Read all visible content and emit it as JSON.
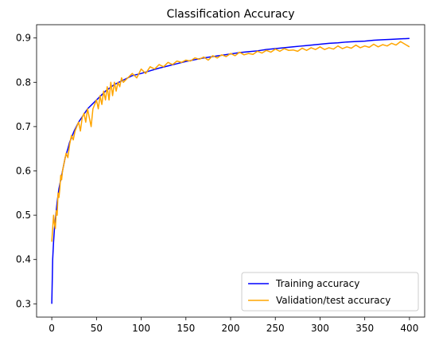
{
  "chart_data": {
    "type": "line",
    "title": "Classification Accuracy",
    "xlabel": "",
    "ylabel": "",
    "xlim": [
      -17,
      417
    ],
    "ylim": [
      0.27,
      0.93
    ],
    "x_ticks": [
      0,
      50,
      100,
      150,
      200,
      250,
      300,
      350,
      400
    ],
    "y_ticks": [
      0.3,
      0.4,
      0.5,
      0.6,
      0.7,
      0.8,
      0.9
    ],
    "grid": false,
    "legend_position": "lower right",
    "series": [
      {
        "name": "Training accuracy",
        "color": "#0000ff",
        "x": [
          0,
          1,
          2,
          3,
          4,
          5,
          6,
          8,
          10,
          12,
          15,
          18,
          20,
          25,
          30,
          35,
          40,
          45,
          50,
          60,
          70,
          80,
          90,
          100,
          110,
          120,
          130,
          140,
          150,
          160,
          170,
          180,
          190,
          200,
          210,
          220,
          230,
          240,
          250,
          260,
          270,
          280,
          290,
          300,
          310,
          320,
          330,
          340,
          350,
          360,
          370,
          380,
          390,
          400
        ],
        "y": [
          0.3,
          0.4,
          0.44,
          0.47,
          0.49,
          0.51,
          0.53,
          0.56,
          0.58,
          0.6,
          0.63,
          0.65,
          0.665,
          0.69,
          0.71,
          0.725,
          0.74,
          0.75,
          0.76,
          0.78,
          0.795,
          0.805,
          0.815,
          0.82,
          0.826,
          0.832,
          0.837,
          0.842,
          0.847,
          0.851,
          0.855,
          0.858,
          0.861,
          0.864,
          0.867,
          0.869,
          0.871,
          0.874,
          0.876,
          0.878,
          0.88,
          0.882,
          0.884,
          0.886,
          0.888,
          0.889,
          0.891,
          0.892,
          0.893,
          0.895,
          0.896,
          0.897,
          0.898,
          0.899
        ]
      },
      {
        "name": "Validation/test accuracy",
        "color": "#ffa500",
        "x": [
          0,
          1,
          2,
          3,
          4,
          5,
          6,
          7,
          8,
          9,
          10,
          11,
          12,
          14,
          16,
          18,
          20,
          22,
          24,
          26,
          28,
          30,
          32,
          34,
          36,
          38,
          40,
          42,
          44,
          46,
          48,
          50,
          52,
          54,
          56,
          58,
          60,
          62,
          64,
          66,
          68,
          70,
          72,
          74,
          76,
          78,
          80,
          85,
          90,
          95,
          100,
          105,
          110,
          115,
          120,
          125,
          130,
          135,
          140,
          145,
          150,
          155,
          160,
          165,
          170,
          175,
          180,
          185,
          190,
          195,
          200,
          205,
          210,
          215,
          220,
          225,
          230,
          235,
          240,
          245,
          250,
          255,
          260,
          265,
          270,
          275,
          280,
          285,
          290,
          295,
          300,
          305,
          310,
          315,
          320,
          325,
          330,
          335,
          340,
          345,
          350,
          355,
          360,
          365,
          370,
          375,
          380,
          385,
          390,
          395,
          400
        ],
        "y": [
          0.44,
          0.47,
          0.5,
          0.48,
          0.47,
          0.51,
          0.5,
          0.55,
          0.54,
          0.56,
          0.59,
          0.58,
          0.6,
          0.62,
          0.64,
          0.63,
          0.66,
          0.68,
          0.67,
          0.69,
          0.7,
          0.71,
          0.69,
          0.72,
          0.73,
          0.71,
          0.74,
          0.72,
          0.7,
          0.74,
          0.75,
          0.76,
          0.74,
          0.77,
          0.75,
          0.78,
          0.76,
          0.79,
          0.76,
          0.8,
          0.77,
          0.8,
          0.78,
          0.8,
          0.79,
          0.81,
          0.8,
          0.81,
          0.82,
          0.81,
          0.83,
          0.82,
          0.835,
          0.83,
          0.84,
          0.835,
          0.845,
          0.84,
          0.848,
          0.845,
          0.85,
          0.848,
          0.855,
          0.852,
          0.857,
          0.85,
          0.86,
          0.855,
          0.862,
          0.858,
          0.865,
          0.86,
          0.868,
          0.862,
          0.865,
          0.863,
          0.87,
          0.866,
          0.872,
          0.868,
          0.875,
          0.87,
          0.876,
          0.872,
          0.873,
          0.87,
          0.877,
          0.872,
          0.878,
          0.874,
          0.88,
          0.874,
          0.878,
          0.875,
          0.882,
          0.876,
          0.88,
          0.877,
          0.884,
          0.878,
          0.882,
          0.879,
          0.886,
          0.88,
          0.885,
          0.882,
          0.888,
          0.884,
          0.892,
          0.886,
          0.88
        ]
      }
    ]
  }
}
